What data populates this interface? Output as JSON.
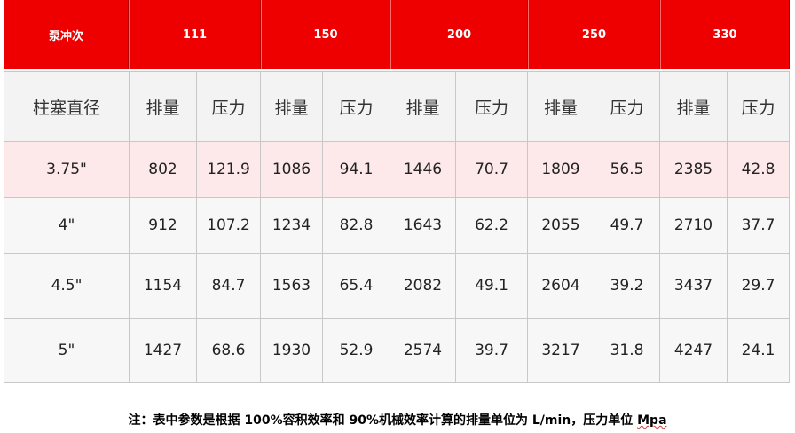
{
  "header": {
    "first_label": "泵冲次",
    "groups": [
      "111",
      "150",
      "200",
      "250",
      "330"
    ]
  },
  "subheader": {
    "first_label": "柱塞直径",
    "displacement": "排量",
    "pressure": "压力"
  },
  "rows": [
    {
      "diameter": "3.75\"",
      "values": [
        "802",
        "121.9",
        "1086",
        "94.1",
        "1446",
        "70.7",
        "1809",
        "56.5",
        "2385",
        "42.8"
      ]
    },
    {
      "diameter": "4\"",
      "values": [
        "912",
        "107.2",
        "1234",
        "82.8",
        "1643",
        "62.2",
        "2055",
        "49.7",
        "2710",
        "37.7"
      ]
    },
    {
      "diameter": "4.5\"",
      "values": [
        "1154",
        "84.7",
        "1563",
        "65.4",
        "2082",
        "49.1",
        "2604",
        "39.2",
        "3437",
        "29.7"
      ]
    },
    {
      "diameter": "5\"",
      "values": [
        "1427",
        "68.6",
        "1930",
        "52.9",
        "2574",
        "39.7",
        "3217",
        "31.8",
        "4247",
        "24.1"
      ]
    }
  ],
  "note": {
    "text": "注：表中参数是根据 100%容积效率和 90%机械效率计算的排量单位为 L/min，压力单位 ",
    "unit": "Mpa"
  },
  "colors": {
    "header_red": "#ee0000",
    "highlight_row": "#fde9e9"
  }
}
